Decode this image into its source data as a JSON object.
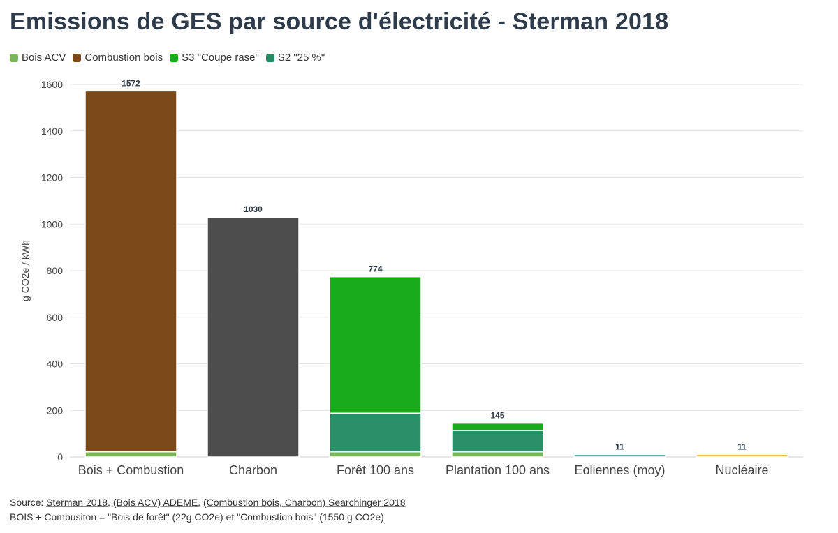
{
  "title": "Emissions de GES par source d'électricité - Sterman 2018",
  "legend": [
    {
      "label": "Bois ACV",
      "color": "#7ab55c"
    },
    {
      "label": "Combustion bois",
      "color": "#7b4a18"
    },
    {
      "label": "S3 \"Coupe rase\"",
      "color": "#1aab1a"
    },
    {
      "label": "S2 \"25 %\"",
      "color": "#238c64"
    }
  ],
  "chart_data": {
    "type": "bar",
    "stacked": true,
    "ylabel": "g CO2e / kWh",
    "ylim": [
      0,
      1600
    ],
    "yticks": [
      0,
      200,
      400,
      600,
      800,
      1000,
      1200,
      1400,
      1600
    ],
    "grid": true,
    "legend_position": "top-left",
    "categories": [
      "Bois + Combustion",
      "Charbon",
      "Forêt 100 ans",
      "Plantation 100 ans",
      "Eoliennes (moy)",
      "Nucléaire"
    ],
    "bars": [
      {
        "category": "Bois + Combustion",
        "total_label": "1572",
        "segments": [
          {
            "series": "Bois ACV",
            "value": 22,
            "color": "#7ab55c"
          },
          {
            "series": "Combustion bois",
            "value": 1550,
            "color": "#7b4a18"
          }
        ]
      },
      {
        "category": "Charbon",
        "total_label": "1030",
        "segments": [
          {
            "series": "Charbon",
            "value": 1030,
            "color": "#4d4d4d"
          }
        ]
      },
      {
        "category": "Forêt 100 ans",
        "total_label": "774",
        "segments": [
          {
            "series": "Bois ACV",
            "value": 22,
            "color": "#7ab55c"
          },
          {
            "series": "S2 \"25 %\"",
            "value": 166,
            "color": "#2a9068"
          },
          {
            "series": "S3 \"Coupe rase\"",
            "value": 586,
            "color": "#1aab1a"
          }
        ]
      },
      {
        "category": "Plantation 100 ans",
        "total_label": "145",
        "segments": [
          {
            "series": "Bois ACV",
            "value": 22,
            "color": "#7ab55c"
          },
          {
            "series": "S2 \"25 %\"",
            "value": 92,
            "color": "#2a9068"
          },
          {
            "series": "S3 \"Coupe rase\"",
            "value": 31,
            "color": "#1aab1a"
          }
        ]
      },
      {
        "category": "Eoliennes (moy)",
        "total_label": "11",
        "segments": [
          {
            "series": "Eoliennes",
            "value": 11,
            "color": "#4fb1a8"
          }
        ]
      },
      {
        "category": "Nucléaire",
        "total_label": "11",
        "segments": [
          {
            "series": "Nucléaire",
            "value": 11,
            "color": "#e8b934"
          }
        ]
      }
    ]
  },
  "footer": {
    "source_prefix": "Source: ",
    "links": [
      "Sterman 2018",
      "(Bois ACV) ADEME",
      "(Combustion bois, Charbon) Searchinger 2018"
    ],
    "note": "BOIS + Combusiton = \"Bois de forêt\" (22g CO2e) et \"Combustion bois\" (1550 g CO2e)"
  }
}
